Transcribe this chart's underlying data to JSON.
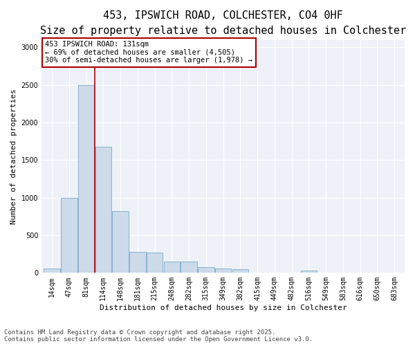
{
  "title": "453, IPSWICH ROAD, COLCHESTER, CO4 0HF",
  "subtitle": "Size of property relative to detached houses in Colchester",
  "xlabel": "Distribution of detached houses by size in Colchester",
  "ylabel": "Number of detached properties",
  "annotation_line1": "453 IPSWICH ROAD: 131sqm",
  "annotation_line2": "← 69% of detached houses are smaller (4,505)",
  "annotation_line3": "30% of semi-detached houses are larger (1,978) →",
  "bin_labels": [
    "14sqm",
    "47sqm",
    "81sqm",
    "114sqm",
    "148sqm",
    "181sqm",
    "215sqm",
    "248sqm",
    "282sqm",
    "315sqm",
    "349sqm",
    "382sqm",
    "415sqm",
    "449sqm",
    "482sqm",
    "516sqm",
    "549sqm",
    "583sqm",
    "616sqm",
    "650sqm",
    "683sqm"
  ],
  "bar_values": [
    60,
    1000,
    2500,
    1680,
    820,
    280,
    270,
    150,
    150,
    80,
    60,
    50,
    5,
    0,
    0,
    35,
    0,
    0,
    0,
    0,
    0
  ],
  "bar_color": "#ccdaea",
  "bar_edge_color": "#7aaac8",
  "vline_color": "#aa0000",
  "vline_position": 2.5,
  "ylim": [
    0,
    3100
  ],
  "yticks": [
    0,
    500,
    1000,
    1500,
    2000,
    2500,
    3000
  ],
  "bg_color": "#eef2f8",
  "footer_line1": "Contains HM Land Registry data © Crown copyright and database right 2025.",
  "footer_line2": "Contains public sector information licensed under the Open Government Licence v3.0.",
  "title_fontsize": 11,
  "subtitle_fontsize": 9,
  "axis_label_fontsize": 8,
  "tick_fontsize": 7,
  "annotation_fontsize": 7.5,
  "footer_fontsize": 6.5
}
